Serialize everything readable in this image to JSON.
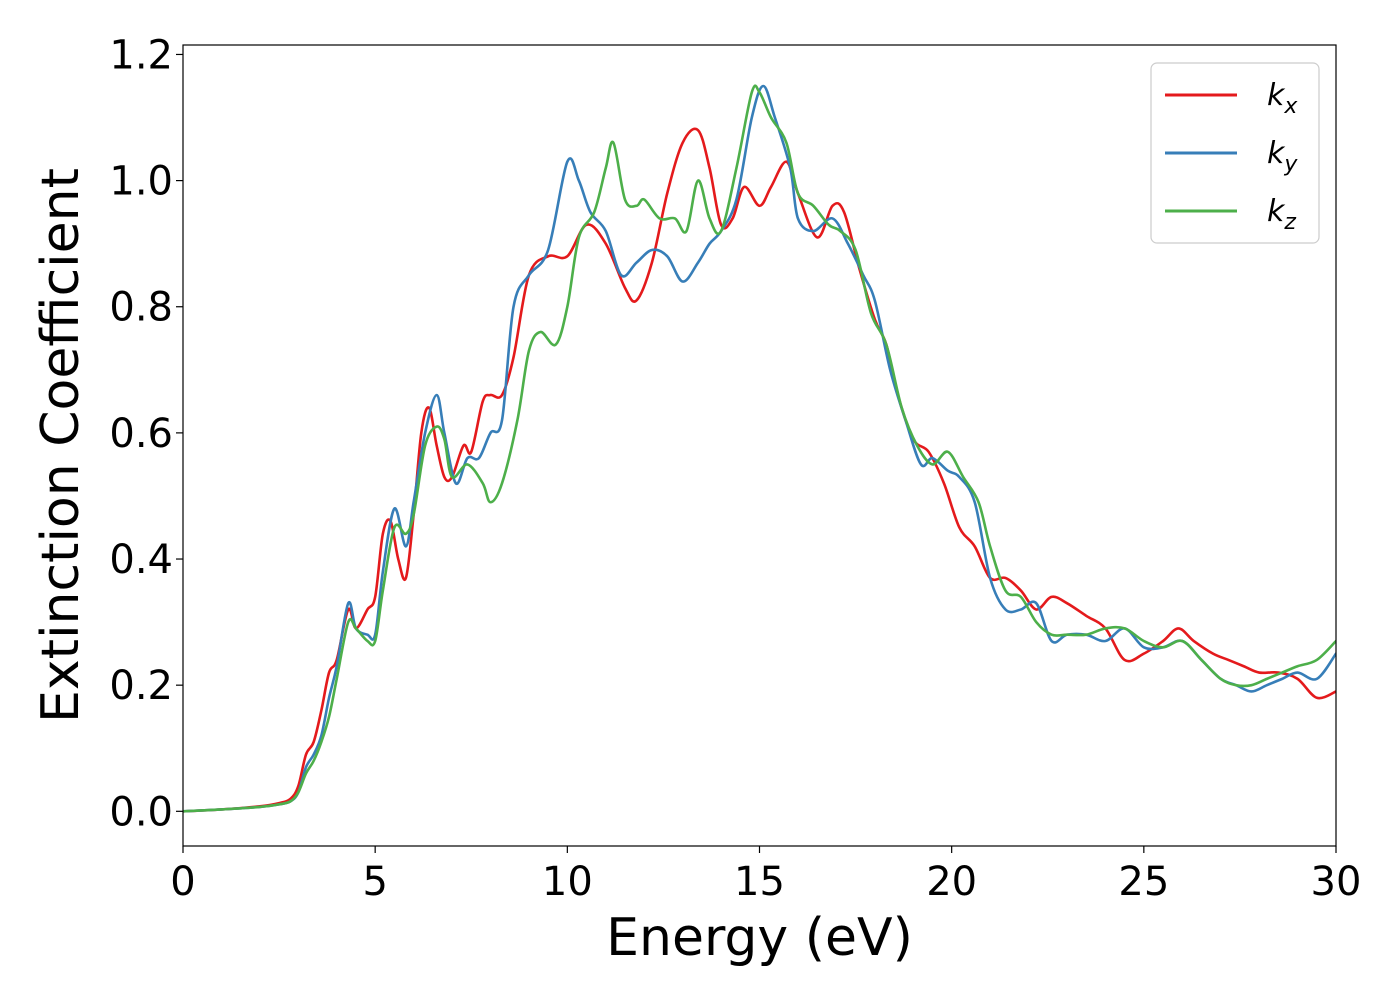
{
  "chart_data": {
    "type": "line",
    "xlabel": "Energy (eV)",
    "ylabel": "Extinction Coefficient",
    "xlim": [
      0,
      30
    ],
    "ylim": [
      -0.055,
      1.215
    ],
    "xticks": [
      0,
      5,
      10,
      15,
      20,
      25,
      30
    ],
    "xtick_labels": [
      "0",
      "5",
      "10",
      "15",
      "20",
      "25",
      "30"
    ],
    "yticks": [
      0.0,
      0.2,
      0.4,
      0.6,
      0.8,
      1.0,
      1.2
    ],
    "ytick_labels": [
      "0.0",
      "0.2",
      "0.4",
      "0.6",
      "0.8",
      "1.0",
      "1.2"
    ],
    "grid": false,
    "legend_position": "top-right",
    "series": [
      {
        "name": "k_x",
        "legend_base": "k",
        "legend_sub": "x",
        "color": "#e41a1c",
        "x": [
          0,
          1,
          2,
          2.5,
          2.8,
          3.0,
          3.2,
          3.4,
          3.6,
          3.8,
          4.0,
          4.3,
          4.5,
          4.8,
          5.0,
          5.2,
          5.4,
          5.6,
          5.8,
          6.0,
          6.2,
          6.4,
          6.6,
          6.8,
          7.0,
          7.3,
          7.5,
          7.8,
          8.0,
          8.3,
          8.6,
          9.0,
          9.5,
          10.0,
          10.5,
          11.0,
          11.5,
          11.8,
          12.2,
          12.6,
          13.0,
          13.4,
          13.7,
          14.0,
          14.3,
          14.6,
          15.0,
          15.3,
          15.7,
          16.0,
          16.5,
          16.9,
          17.2,
          17.6,
          18.0,
          18.3,
          18.6,
          19.0,
          19.4,
          19.8,
          20.2,
          20.6,
          21.0,
          21.4,
          21.8,
          22.2,
          22.6,
          23.0,
          23.5,
          24.0,
          24.5,
          25.0,
          25.5,
          25.9,
          26.3,
          26.8,
          27.2,
          27.6,
          28.0,
          28.5,
          29.0,
          29.5,
          30.0
        ],
        "y": [
          0.0,
          0.003,
          0.008,
          0.013,
          0.02,
          0.04,
          0.09,
          0.11,
          0.16,
          0.22,
          0.24,
          0.32,
          0.29,
          0.32,
          0.34,
          0.44,
          0.46,
          0.4,
          0.37,
          0.47,
          0.6,
          0.64,
          0.58,
          0.53,
          0.53,
          0.58,
          0.57,
          0.65,
          0.66,
          0.66,
          0.72,
          0.85,
          0.88,
          0.88,
          0.93,
          0.9,
          0.83,
          0.81,
          0.87,
          0.98,
          1.06,
          1.08,
          1.02,
          0.93,
          0.94,
          0.99,
          0.96,
          0.99,
          1.03,
          0.98,
          0.91,
          0.96,
          0.95,
          0.86,
          0.78,
          0.74,
          0.66,
          0.59,
          0.57,
          0.52,
          0.45,
          0.42,
          0.37,
          0.37,
          0.35,
          0.32,
          0.34,
          0.33,
          0.31,
          0.29,
          0.24,
          0.25,
          0.27,
          0.29,
          0.27,
          0.25,
          0.24,
          0.23,
          0.22,
          0.22,
          0.21,
          0.18,
          0.19
        ]
      },
      {
        "name": "k_y",
        "legend_base": "k",
        "legend_sub": "y",
        "color": "#377eb8",
        "x": [
          0,
          1,
          2,
          2.5,
          2.8,
          3.0,
          3.2,
          3.4,
          3.6,
          3.8,
          4.0,
          4.3,
          4.5,
          4.8,
          5.0,
          5.2,
          5.5,
          5.8,
          6.0,
          6.3,
          6.6,
          6.8,
          7.1,
          7.4,
          7.7,
          8.0,
          8.3,
          8.6,
          9.0,
          9.5,
          10.0,
          10.3,
          10.6,
          11.0,
          11.4,
          11.8,
          12.2,
          12.6,
          13.0,
          13.4,
          13.7,
          14.0,
          14.4,
          14.8,
          15.1,
          15.4,
          15.8,
          16.0,
          16.4,
          16.9,
          17.3,
          17.7,
          18.0,
          18.4,
          18.8,
          19.2,
          19.5,
          19.9,
          20.2,
          20.6,
          21.0,
          21.4,
          21.8,
          22.2,
          22.6,
          23.0,
          23.5,
          24.0,
          24.5,
          25.0,
          25.5,
          26.0,
          26.5,
          27.0,
          27.4,
          27.8,
          28.2,
          28.6,
          29.0,
          29.5,
          30.0
        ],
        "y": [
          0.0,
          0.003,
          0.007,
          0.011,
          0.016,
          0.03,
          0.07,
          0.09,
          0.12,
          0.18,
          0.23,
          0.33,
          0.29,
          0.28,
          0.28,
          0.38,
          0.48,
          0.42,
          0.49,
          0.6,
          0.66,
          0.6,
          0.52,
          0.56,
          0.56,
          0.6,
          0.62,
          0.8,
          0.85,
          0.89,
          1.03,
          1.0,
          0.95,
          0.92,
          0.85,
          0.87,
          0.89,
          0.88,
          0.84,
          0.87,
          0.9,
          0.92,
          0.97,
          1.1,
          1.15,
          1.1,
          1.02,
          0.94,
          0.92,
          0.94,
          0.9,
          0.85,
          0.81,
          0.7,
          0.62,
          0.55,
          0.56,
          0.54,
          0.53,
          0.49,
          0.37,
          0.32,
          0.32,
          0.33,
          0.27,
          0.28,
          0.28,
          0.27,
          0.29,
          0.26,
          0.26,
          0.27,
          0.24,
          0.21,
          0.2,
          0.19,
          0.2,
          0.21,
          0.22,
          0.21,
          0.25
        ]
      },
      {
        "name": "k_z",
        "legend_base": "k",
        "legend_sub": "z",
        "color": "#4daf4a",
        "x": [
          0,
          1,
          2,
          2.5,
          2.8,
          3.0,
          3.2,
          3.4,
          3.6,
          3.8,
          4.0,
          4.3,
          4.5,
          4.8,
          5.0,
          5.2,
          5.5,
          5.8,
          6.0,
          6.3,
          6.6,
          6.8,
          7.0,
          7.4,
          7.8,
          8.0,
          8.3,
          8.7,
          9.0,
          9.3,
          9.7,
          10.0,
          10.3,
          10.7,
          11.0,
          11.2,
          11.5,
          11.8,
          12.0,
          12.4,
          12.8,
          13.1,
          13.4,
          13.7,
          14.0,
          14.4,
          14.8,
          15.0,
          15.3,
          15.7,
          16.0,
          16.4,
          16.8,
          17.1,
          17.5,
          17.9,
          18.3,
          18.7,
          19.1,
          19.5,
          19.9,
          20.3,
          20.7,
          21.0,
          21.4,
          21.8,
          22.2,
          22.6,
          23.0,
          23.5,
          24.0,
          24.5,
          25.0,
          25.5,
          26.0,
          26.5,
          27.0,
          27.4,
          27.8,
          28.2,
          28.6,
          29.0,
          29.5,
          30.0
        ],
        "y": [
          0.0,
          0.003,
          0.007,
          0.011,
          0.016,
          0.03,
          0.06,
          0.08,
          0.11,
          0.15,
          0.21,
          0.3,
          0.29,
          0.27,
          0.27,
          0.35,
          0.45,
          0.44,
          0.47,
          0.58,
          0.61,
          0.59,
          0.53,
          0.55,
          0.52,
          0.49,
          0.52,
          0.62,
          0.73,
          0.76,
          0.74,
          0.8,
          0.91,
          0.95,
          1.02,
          1.06,
          0.97,
          0.96,
          0.97,
          0.94,
          0.94,
          0.92,
          1.0,
          0.94,
          0.92,
          1.02,
          1.14,
          1.14,
          1.1,
          1.06,
          0.98,
          0.96,
          0.93,
          0.92,
          0.89,
          0.79,
          0.74,
          0.64,
          0.58,
          0.55,
          0.57,
          0.53,
          0.49,
          0.42,
          0.35,
          0.34,
          0.3,
          0.28,
          0.28,
          0.28,
          0.29,
          0.29,
          0.27,
          0.26,
          0.27,
          0.24,
          0.21,
          0.2,
          0.2,
          0.21,
          0.22,
          0.23,
          0.24,
          0.27
        ]
      }
    ]
  }
}
